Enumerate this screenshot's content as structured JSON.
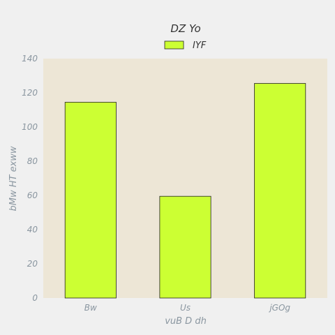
{
  "chart_data": {
    "type": "bar",
    "title": "DZ Yo",
    "xlabel": "vuB D dh",
    "ylabel": "bMw HT exww",
    "categories": [
      "Bw",
      "Us",
      "jGOg"
    ],
    "series": [
      {
        "name": "IYF",
        "values": [
          114.5,
          59.5,
          125.5
        ]
      }
    ],
    "ylim": [
      0,
      140
    ],
    "yticks": [
      0,
      20,
      40,
      60,
      80,
      100,
      120,
      140
    ],
    "grid": false,
    "legend": "top-center",
    "colors": {
      "bar_fill": "#ccff33",
      "bar_stroke": "#222222",
      "plot_bg": "#ede6d6",
      "page_bg": "#f0f0f0"
    }
  }
}
